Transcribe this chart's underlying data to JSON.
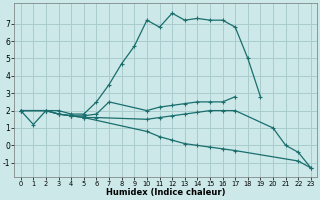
{
  "title": "",
  "xlabel": "Humidex (Indice chaleur)",
  "bg_color": "#cce8e8",
  "grid_color": "#aacccc",
  "line_color": "#1a6e6e",
  "xlim": [
    -0.5,
    23.5
  ],
  "ylim": [
    -1.8,
    8.2
  ],
  "xticks": [
    0,
    1,
    2,
    3,
    4,
    5,
    6,
    7,
    8,
    9,
    10,
    11,
    12,
    13,
    14,
    15,
    16,
    17,
    18,
    19,
    20,
    21,
    22,
    23
  ],
  "yticks": [
    -1,
    0,
    1,
    2,
    3,
    4,
    5,
    6,
    7
  ],
  "lines": [
    {
      "x": [
        0,
        1,
        2,
        3,
        4,
        5,
        6,
        7,
        8,
        9,
        10,
        11,
        12,
        13,
        14,
        15,
        16,
        17,
        18,
        19
      ],
      "y": [
        2.0,
        1.2,
        2.0,
        2.0,
        1.8,
        1.8,
        2.5,
        3.5,
        4.7,
        5.7,
        7.2,
        6.8,
        7.6,
        7.2,
        7.3,
        7.2,
        7.2,
        6.8,
        5.0,
        2.8
      ]
    },
    {
      "x": [
        0,
        2,
        3,
        4,
        5,
        6,
        7,
        10,
        11,
        12,
        13,
        14,
        15,
        16,
        17
      ],
      "y": [
        2.0,
        2.0,
        1.8,
        1.7,
        1.7,
        1.8,
        2.5,
        2.0,
        2.2,
        2.3,
        2.4,
        2.5,
        2.5,
        2.5,
        2.8
      ]
    },
    {
      "x": [
        0,
        2,
        3,
        4,
        5,
        6,
        10,
        11,
        12,
        13,
        14,
        15,
        16,
        17,
        20,
        21,
        22,
        23
      ],
      "y": [
        2.0,
        2.0,
        1.8,
        1.7,
        1.6,
        1.6,
        1.5,
        1.6,
        1.7,
        1.8,
        1.9,
        2.0,
        2.0,
        2.0,
        1.0,
        0.0,
        -0.4,
        -1.3
      ]
    },
    {
      "x": [
        0,
        2,
        3,
        4,
        5,
        10,
        11,
        12,
        13,
        14,
        15,
        16,
        17,
        22,
        23
      ],
      "y": [
        2.0,
        2.0,
        1.8,
        1.7,
        1.6,
        0.8,
        0.5,
        0.3,
        0.1,
        0.0,
        -0.1,
        -0.2,
        -0.3,
        -0.9,
        -1.3
      ]
    }
  ]
}
